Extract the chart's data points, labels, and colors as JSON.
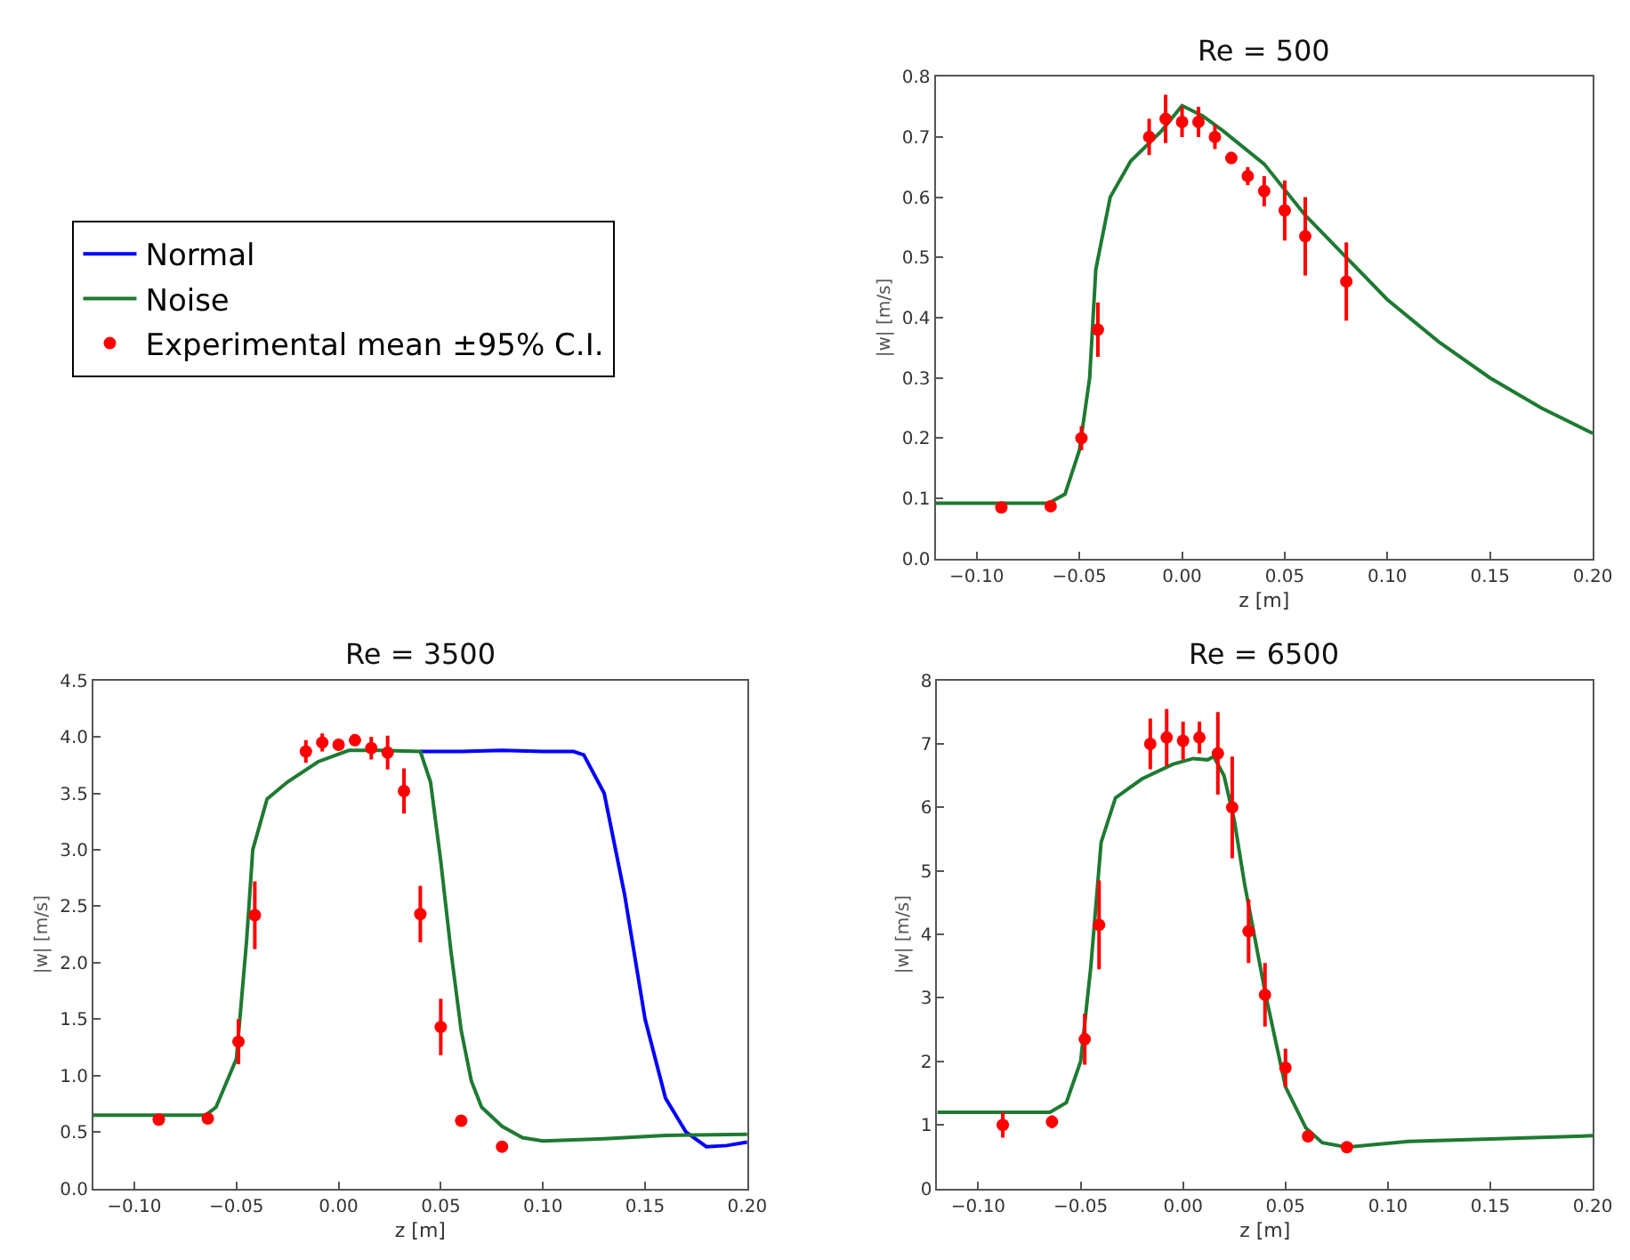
{
  "chart_data": [
    {
      "type": "line",
      "title": "Re = 500",
      "xlabel": "z [m]",
      "ylabel": "|w| [m/s]",
      "legend": "left",
      "xlim": [
        -0.12,
        0.2
      ],
      "xticks": [
        {
          "value": -0.1,
          "label": "−0.10"
        },
        {
          "value": -0.05,
          "label": "−0.05"
        },
        {
          "value": 0,
          "label": "0.00"
        },
        {
          "value": 0.05,
          "label": "0.05"
        },
        {
          "value": 0.1,
          "label": "0.10"
        },
        {
          "value": 0.15,
          "label": "0.15"
        },
        {
          "value": 0.2,
          "label": "0.20"
        }
      ],
      "ylim": [
        0,
        0.8
      ],
      "yticks": [
        {
          "value": 0,
          "label": "0.0"
        },
        {
          "value": 0.1,
          "label": "0.1"
        },
        {
          "value": 0.2,
          "label": "0.2"
        },
        {
          "value": 0.3,
          "label": "0.3"
        },
        {
          "value": 0.4,
          "label": "0.4"
        },
        {
          "value": 0.5,
          "label": "0.5"
        },
        {
          "value": 0.6,
          "label": "0.6"
        },
        {
          "value": 0.7,
          "label": "0.7"
        },
        {
          "value": 0.8,
          "label": "0.8"
        }
      ],
      "series": [
        {
          "name": "Noise",
          "color": "#1e7a32",
          "marker": "none",
          "x": [
            -0.12,
            -0.065,
            -0.057,
            -0.05,
            -0.045,
            -0.042,
            -0.035,
            -0.025,
            -0.01,
            0.0,
            0.01,
            0.02,
            0.04,
            0.06,
            0.08,
            0.1,
            0.125,
            0.15,
            0.175,
            0.2
          ],
          "values": [
            0.092,
            0.092,
            0.107,
            0.18,
            0.3,
            0.48,
            0.6,
            0.66,
            0.71,
            0.752,
            0.735,
            0.71,
            0.655,
            0.57,
            0.5,
            0.43,
            0.36,
            0.3,
            0.25,
            0.208
          ]
        },
        {
          "name": "Experimental mean ±95% C.I.",
          "type": "scatter",
          "color": "#ff0000",
          "marker": "circle",
          "x": [
            -0.088,
            -0.064,
            -0.049,
            -0.041,
            -0.016,
            -0.008,
            0.0,
            0.008,
            0.016,
            0.024,
            0.032,
            0.04,
            0.05,
            0.06,
            0.08
          ],
          "values": [
            0.085,
            0.087,
            0.2,
            0.38,
            0.7,
            0.73,
            0.725,
            0.725,
            0.7,
            0.665,
            0.635,
            0.61,
            0.578,
            0.535,
            0.46
          ],
          "errors": [
            0.005,
            0.005,
            0.02,
            0.045,
            0.03,
            0.04,
            0.025,
            0.025,
            0.02,
            0.01,
            0.015,
            0.025,
            0.05,
            0.065,
            0.065
          ]
        }
      ]
    },
    {
      "type": "line",
      "title": "Re = 3500",
      "xlabel": "z [m]",
      "ylabel": "|w| [m/s]",
      "legend": "top left",
      "xlim": [
        -0.12,
        0.2
      ],
      "xticks": [
        {
          "value": -0.1,
          "label": "−0.10"
        },
        {
          "value": -0.05,
          "label": "−0.05"
        },
        {
          "value": 0,
          "label": "0.00"
        },
        {
          "value": 0.05,
          "label": "0.05"
        },
        {
          "value": 0.1,
          "label": "0.10"
        },
        {
          "value": 0.15,
          "label": "0.15"
        },
        {
          "value": 0.2,
          "label": "0.20"
        }
      ],
      "ylim": [
        0,
        4.5
      ],
      "yticks": [
        {
          "value": 0,
          "label": "0.0"
        },
        {
          "value": 0.5,
          "label": "0.5"
        },
        {
          "value": 1,
          "label": "1.0"
        },
        {
          "value": 1.5,
          "label": "1.5"
        },
        {
          "value": 2,
          "label": "2.0"
        },
        {
          "value": 2.5,
          "label": "2.5"
        },
        {
          "value": 3,
          "label": "3.0"
        },
        {
          "value": 3.5,
          "label": "3.5"
        },
        {
          "value": 4,
          "label": "4.0"
        },
        {
          "value": 4.5,
          "label": "4.5"
        }
      ],
      "series": [
        {
          "name": "Normal",
          "color": "#0000ff",
          "marker": "none",
          "x": [
            0.04,
            0.06,
            0.08,
            0.1,
            0.115,
            0.12,
            0.13,
            0.14,
            0.15,
            0.16,
            0.17,
            0.18,
            0.19,
            0.2
          ],
          "values": [
            3.87,
            3.87,
            3.88,
            3.87,
            3.87,
            3.84,
            3.5,
            2.6,
            1.5,
            0.8,
            0.5,
            0.37,
            0.38,
            0.41
          ]
        },
        {
          "name": "Noise",
          "color": "#1e7a32",
          "marker": "none",
          "x": [
            -0.12,
            -0.065,
            -0.06,
            -0.05,
            -0.045,
            -0.042,
            -0.035,
            -0.025,
            -0.01,
            0.005,
            0.02,
            0.04,
            0.045,
            0.05,
            0.055,
            0.06,
            0.065,
            0.07,
            0.08,
            0.09,
            0.1,
            0.13,
            0.16,
            0.2
          ],
          "values": [
            0.65,
            0.65,
            0.72,
            1.15,
            2.2,
            3.0,
            3.45,
            3.6,
            3.78,
            3.88,
            3.88,
            3.87,
            3.6,
            2.9,
            2.1,
            1.4,
            0.95,
            0.72,
            0.55,
            0.45,
            0.42,
            0.44,
            0.47,
            0.48
          ]
        },
        {
          "name": "Experimental mean ±95% C.I.",
          "type": "scatter",
          "color": "#ff0000",
          "marker": "circle",
          "x": [
            -0.088,
            -0.064,
            -0.049,
            -0.041,
            -0.016,
            -0.008,
            0.0,
            0.008,
            0.016,
            0.024,
            0.032,
            0.04,
            0.05,
            0.06,
            0.08
          ],
          "values": [
            0.61,
            0.62,
            1.3,
            2.42,
            3.87,
            3.95,
            3.93,
            3.97,
            3.9,
            3.86,
            3.52,
            2.43,
            1.43,
            0.6,
            0.37
          ],
          "errors": [
            0.02,
            0.03,
            0.2,
            0.3,
            0.1,
            0.08,
            0.05,
            0.05,
            0.1,
            0.15,
            0.2,
            0.25,
            0.25,
            0.03,
            0.02
          ]
        }
      ]
    },
    {
      "type": "line",
      "title": "Re = 6500",
      "xlabel": "z [m]",
      "ylabel": "|w| [m/s]",
      "legend": false,
      "xlim": [
        -0.12,
        0.2
      ],
      "xticks": [
        {
          "value": -0.1,
          "label": "−0.10"
        },
        {
          "value": -0.05,
          "label": "−0.05"
        },
        {
          "value": 0,
          "label": "0.00"
        },
        {
          "value": 0.05,
          "label": "0.05"
        },
        {
          "value": 0.1,
          "label": "0.10"
        },
        {
          "value": 0.15,
          "label": "0.15"
        },
        {
          "value": 0.2,
          "label": "0.20"
        }
      ],
      "ylim": [
        0,
        8
      ],
      "yticks": [
        0,
        1,
        2,
        3,
        4,
        5,
        6,
        7,
        8
      ],
      "series": [
        {
          "name": "Noise",
          "color": "#1e7a32",
          "marker": "none",
          "x": [
            -0.12,
            -0.065,
            -0.057,
            -0.05,
            -0.045,
            -0.04,
            -0.033,
            -0.02,
            -0.005,
            0.005,
            0.012,
            0.015,
            0.02,
            0.025,
            0.03,
            0.04,
            0.05,
            0.06,
            0.068,
            0.08,
            0.09,
            0.11,
            0.15,
            0.2
          ],
          "values": [
            1.2,
            1.2,
            1.35,
            2.0,
            3.5,
            5.45,
            6.15,
            6.45,
            6.68,
            6.77,
            6.75,
            6.8,
            6.5,
            5.8,
            4.8,
            3.1,
            1.6,
            0.95,
            0.72,
            0.65,
            0.68,
            0.74,
            0.78,
            0.83
          ]
        },
        {
          "name": "Experimental mean ±95% C.I.",
          "type": "scatter",
          "color": "#ff0000",
          "marker": "circle",
          "x": [
            -0.088,
            -0.064,
            -0.048,
            -0.041,
            -0.016,
            -0.008,
            0.0,
            0.008,
            0.017,
            0.024,
            0.032,
            0.04,
            0.05,
            0.061,
            0.08
          ],
          "values": [
            1.0,
            1.05,
            2.35,
            4.15,
            7.0,
            7.1,
            7.05,
            7.1,
            6.85,
            6.0,
            4.05,
            3.05,
            1.9,
            0.82,
            0.65
          ],
          "errors": [
            0.2,
            0.1,
            0.4,
            0.7,
            0.4,
            0.45,
            0.3,
            0.25,
            0.65,
            0.8,
            0.5,
            0.5,
            0.3,
            0.05,
            0.05
          ]
        }
      ]
    }
  ]
}
